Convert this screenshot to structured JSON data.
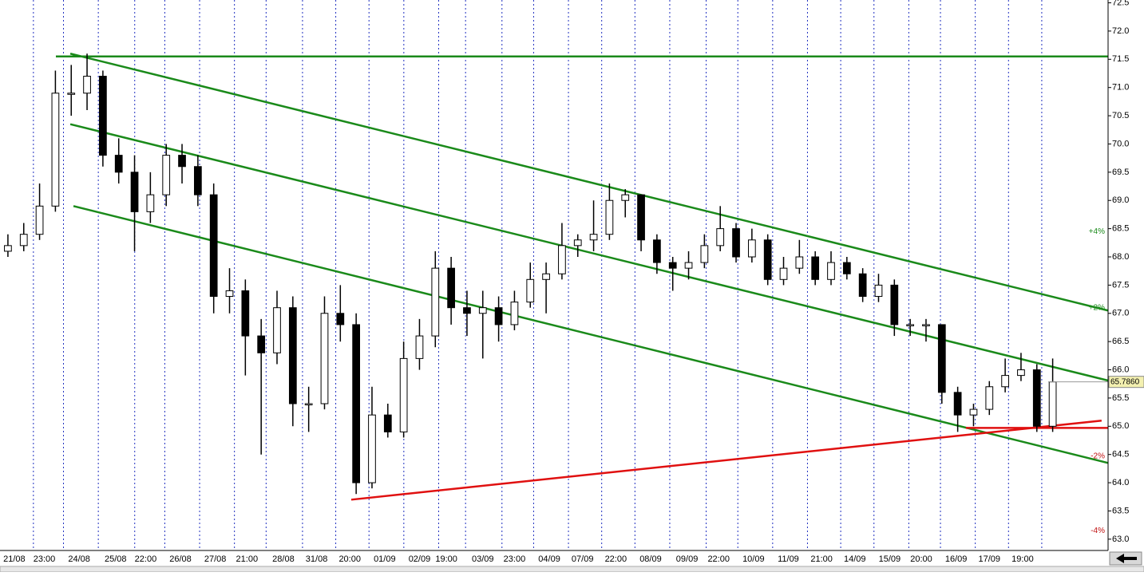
{
  "chart_data": {
    "type": "candlestick",
    "ohlc": [
      [
        68.1,
        68.4,
        68.0,
        68.2
      ],
      [
        68.2,
        68.6,
        68.1,
        68.4
      ],
      [
        68.4,
        69.3,
        68.3,
        68.9
      ],
      [
        68.9,
        71.3,
        68.8,
        70.9
      ],
      [
        70.9,
        71.4,
        70.5,
        70.9
      ],
      [
        70.9,
        71.6,
        70.6,
        71.2
      ],
      [
        71.2,
        71.3,
        69.6,
        69.8
      ],
      [
        69.8,
        70.1,
        69.3,
        69.5
      ],
      [
        69.5,
        69.8,
        68.1,
        68.8
      ],
      [
        68.8,
        69.5,
        68.6,
        69.1
      ],
      [
        69.1,
        70.0,
        68.9,
        69.8
      ],
      [
        69.8,
        70.0,
        69.3,
        69.6
      ],
      [
        69.6,
        69.8,
        68.9,
        69.1
      ],
      [
        69.1,
        69.3,
        67.0,
        67.3
      ],
      [
        67.3,
        67.8,
        67.0,
        67.4
      ],
      [
        67.4,
        67.6,
        65.9,
        66.6
      ],
      [
        66.6,
        66.9,
        64.5,
        66.3
      ],
      [
        66.3,
        67.4,
        66.1,
        67.1
      ],
      [
        67.1,
        67.3,
        65.0,
        65.4
      ],
      [
        65.4,
        65.7,
        64.9,
        65.4
      ],
      [
        65.4,
        67.3,
        65.3,
        67.0
      ],
      [
        67.0,
        67.5,
        66.5,
        66.8
      ],
      [
        66.8,
        67.0,
        63.8,
        64.0
      ],
      [
        64.0,
        65.7,
        63.9,
        65.2
      ],
      [
        65.2,
        65.4,
        64.8,
        64.9
      ],
      [
        64.9,
        66.5,
        64.8,
        66.2
      ],
      [
        66.2,
        66.9,
        66.0,
        66.6
      ],
      [
        66.6,
        68.1,
        66.4,
        67.8
      ],
      [
        67.8,
        68.0,
        66.8,
        67.1
      ],
      [
        67.1,
        67.4,
        66.6,
        67.0
      ],
      [
        67.0,
        67.4,
        66.2,
        67.1
      ],
      [
        67.1,
        67.3,
        66.5,
        66.8
      ],
      [
        66.8,
        67.4,
        66.7,
        67.2
      ],
      [
        67.2,
        67.9,
        67.1,
        67.6
      ],
      [
        67.6,
        67.9,
        67.0,
        67.7
      ],
      [
        67.7,
        68.6,
        67.6,
        68.2
      ],
      [
        68.2,
        68.4,
        68.0,
        68.3
      ],
      [
        68.3,
        69.0,
        68.1,
        68.4
      ],
      [
        68.4,
        69.3,
        68.3,
        69.0
      ],
      [
        69.0,
        69.2,
        68.7,
        69.1
      ],
      [
        69.1,
        69.1,
        68.1,
        68.3
      ],
      [
        68.3,
        68.4,
        67.7,
        67.9
      ],
      [
        67.9,
        68.0,
        67.4,
        67.8
      ],
      [
        67.8,
        68.1,
        67.6,
        67.9
      ],
      [
        67.9,
        68.4,
        67.8,
        68.2
      ],
      [
        68.2,
        68.9,
        68.1,
        68.5
      ],
      [
        68.5,
        68.6,
        67.9,
        68.0
      ],
      [
        68.0,
        68.5,
        67.9,
        68.3
      ],
      [
        68.3,
        68.4,
        67.5,
        67.6
      ],
      [
        67.6,
        68.0,
        67.5,
        67.8
      ],
      [
        67.8,
        68.3,
        67.7,
        68.0
      ],
      [
        68.0,
        68.1,
        67.5,
        67.6
      ],
      [
        67.6,
        68.1,
        67.5,
        67.9
      ],
      [
        67.9,
        68.0,
        67.6,
        67.7
      ],
      [
        67.7,
        67.8,
        67.2,
        67.3
      ],
      [
        67.3,
        67.7,
        67.2,
        67.5
      ],
      [
        67.5,
        67.6,
        66.6,
        66.8
      ],
      [
        66.8,
        66.9,
        66.6,
        66.8
      ],
      [
        66.8,
        66.9,
        66.5,
        66.8
      ],
      [
        66.8,
        66.8,
        65.4,
        65.6
      ],
      [
        65.6,
        65.7,
        64.9,
        65.2
      ],
      [
        65.2,
        65.4,
        65.0,
        65.3
      ],
      [
        65.3,
        65.8,
        65.2,
        65.7
      ],
      [
        65.7,
        66.2,
        65.6,
        65.9
      ],
      [
        65.9,
        66.3,
        65.8,
        66.0
      ],
      [
        66.0,
        66.1,
        64.9,
        65.0
      ],
      [
        65.0,
        66.2,
        64.9,
        65.786
      ]
    ],
    "xlim": [
      0,
      70
    ],
    "xticks": [
      {
        "value": 0.9,
        "label": "21/08"
      },
      {
        "value": 2.8,
        "label": "23:00"
      },
      {
        "value": 5.0,
        "label": "24/08"
      },
      {
        "value": 7.3,
        "label": "25/08"
      },
      {
        "value": 9.2,
        "label": "22:00"
      },
      {
        "value": 11.4,
        "label": "26/08"
      },
      {
        "value": 13.6,
        "label": "27/08"
      },
      {
        "value": 15.6,
        "label": "21:00"
      },
      {
        "value": 17.9,
        "label": "28/08"
      },
      {
        "value": 20.0,
        "label": "31/08"
      },
      {
        "value": 22.1,
        "label": "20:00"
      },
      {
        "value": 24.3,
        "label": "01/09"
      },
      {
        "value": 26.5,
        "label": "02/09"
      },
      {
        "value": 28.2,
        "label": "19:00"
      },
      {
        "value": 30.5,
        "label": "03/09"
      },
      {
        "value": 32.5,
        "label": "23:00"
      },
      {
        "value": 34.7,
        "label": "04/09"
      },
      {
        "value": 36.8,
        "label": "07/09"
      },
      {
        "value": 38.9,
        "label": "22:00"
      },
      {
        "value": 41.1,
        "label": "08/09"
      },
      {
        "value": 43.4,
        "label": "09/09"
      },
      {
        "value": 45.4,
        "label": "22:00"
      },
      {
        "value": 47.6,
        "label": "10/09"
      },
      {
        "value": 49.8,
        "label": "11/09"
      },
      {
        "value": 51.9,
        "label": "21:00"
      },
      {
        "value": 54.0,
        "label": "14/09"
      },
      {
        "value": 56.2,
        "label": "15/09"
      },
      {
        "value": 58.2,
        "label": "20:00"
      },
      {
        "value": 60.4,
        "label": "16/09"
      },
      {
        "value": 62.5,
        "label": "17/09"
      },
      {
        "value": 64.6,
        "label": "19:00"
      }
    ],
    "ylim": [
      62.8,
      72.55
    ],
    "yticks": [
      {
        "value": 63,
        "label": "63.0"
      },
      {
        "value": 63.5,
        "label": "63.5"
      },
      {
        "value": 64,
        "label": "64.0"
      },
      {
        "value": 64.5,
        "label": "64.5"
      },
      {
        "value": 65,
        "label": "65.0"
      },
      {
        "value": 65.5,
        "label": "65.5"
      },
      {
        "value": 66,
        "label": "66.0"
      },
      {
        "value": 66.5,
        "label": "66.5"
      },
      {
        "value": 67,
        "label": "67.0"
      },
      {
        "value": 67.5,
        "label": "67.5"
      },
      {
        "value": 68,
        "label": "68.0"
      },
      {
        "value": 68.5,
        "label": "68.5"
      },
      {
        "value": 69,
        "label": "69.0"
      },
      {
        "value": 69.5,
        "label": "69.5"
      },
      {
        "value": 70,
        "label": "70.0"
      },
      {
        "value": 70.5,
        "label": "70.5"
      },
      {
        "value": 71,
        "label": "71.0"
      },
      {
        "value": 71.5,
        "label": "71.5"
      },
      {
        "value": 72,
        "label": "72.0"
      },
      {
        "value": 72.5,
        "label": "72.5"
      }
    ],
    "xgrid": true,
    "up_color": "#ffffff",
    "down_color": "#000000",
    "trend_lines": [
      {
        "color": "#1a8a1a",
        "points": [
          [
            3.53,
            71.55
          ],
          [
            70,
            71.55
          ]
        ]
      },
      {
        "color": "#1a8a1a",
        "points": [
          [
            4.44,
            71.6
          ],
          [
            70,
            67.05
          ]
        ]
      },
      {
        "color": "#1a8a1a",
        "points": [
          [
            4.44,
            70.35
          ],
          [
            70,
            65.81
          ]
        ]
      },
      {
        "color": "#1a8a1a",
        "points": [
          [
            4.64,
            68.9
          ],
          [
            70,
            64.35
          ]
        ]
      },
      {
        "color": "#e01010",
        "points": [
          [
            22.19,
            63.7
          ],
          [
            69.59,
            65.1
          ]
        ]
      },
      {
        "color": "#e01010",
        "points": [
          [
            61.02,
            64.97
          ],
          [
            70,
            64.97
          ]
        ]
      }
    ],
    "annotations": [
      {
        "text": "+4%",
        "y": 68.45,
        "color": "#1a8a1a"
      },
      {
        "text": "+2%",
        "y": 67.1,
        "color": "#1a8a1a"
      },
      {
        "text": "-2%",
        "y": 64.47,
        "color": "#c01010"
      },
      {
        "text": "-4%",
        "y": 63.15,
        "color": "#c01010"
      }
    ],
    "last_price": {
      "value": 65.786,
      "label": "65.7860"
    }
  }
}
